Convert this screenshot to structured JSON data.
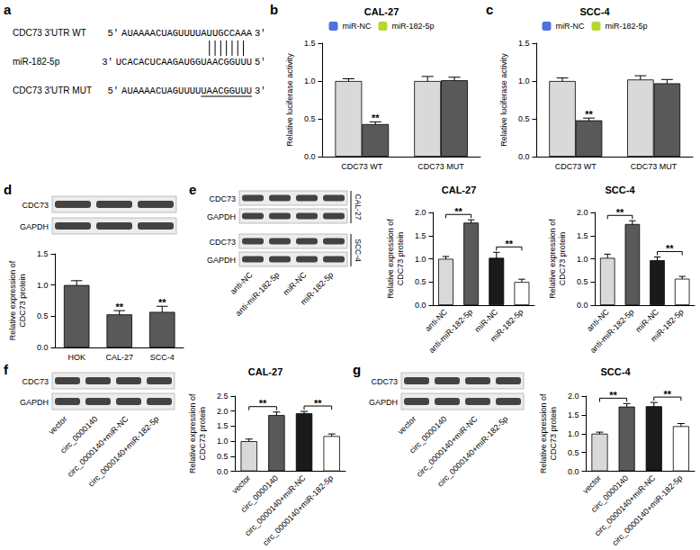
{
  "panel_a": {
    "panel": "a",
    "rows": [
      {
        "label": "CDC73 3'UTR WT",
        "prime5": "5'",
        "sequence": "AUAAAACUAGUUUUAUUGCCAAA",
        "prime3": "3'"
      },
      {
        "label": "miR-182-5p",
        "prime5": "3'",
        "sequence": "UCACACUCAAGAUGGUAACGGUUU",
        "prime3": "5'"
      },
      {
        "label": "CDC73 3'UTR MUT",
        "prime5": "5'",
        "sequence": "AUAAAACUAGUUUUUAACGGUUU",
        "prime3": "3'"
      }
    ]
  },
  "blots": [
    {
      "panel": "d",
      "rows": [
        "CDC73",
        "GAPDH"
      ]
    },
    {
      "panel": "e",
      "groups": [
        {
          "name": "CAL-27",
          "rows": [
            "CDC73",
            "GAPDH"
          ]
        },
        {
          "name": "SCC-4",
          "rows": [
            "CDC73",
            "GAPDH"
          ]
        }
      ],
      "lanes": [
        "anti-NC",
        "anti-miR-182-5p",
        "miR-NC",
        "miR-182-5p"
      ]
    },
    {
      "panel": "f",
      "rows": [
        "CDC73",
        "GAPDH"
      ],
      "lanes": [
        "vector",
        "circ_0000140",
        "circ_0000140+miR-NC",
        "circ_0000140+miR-182-5p"
      ]
    },
    {
      "panel": "g",
      "rows": [
        "CDC73",
        "GAPDH"
      ],
      "lanes": [
        "vector",
        "circ_0000140",
        "circ_0000140+miR-NC",
        "circ_0000140+miR-182-5p"
      ]
    }
  ],
  "chart_data": [
    {
      "panel": "b",
      "type": "bar",
      "title": "CAL-27",
      "y_label": "Relative luciferase activity",
      "categories": [
        "CDC73 WT",
        "CDC73 MUT"
      ],
      "series": [
        {
          "name": "miR-NC",
          "color": "#d9d9d9",
          "values": [
            1.0,
            1.0
          ],
          "errors": [
            0.03,
            0.06
          ]
        },
        {
          "name": "miR-182-5p",
          "color": "#595959",
          "values": [
            0.43,
            1.01
          ],
          "errors": [
            0.03,
            0.04
          ]
        }
      ],
      "ylim": [
        0,
        1.5
      ],
      "yticks": [
        {
          "value": 0,
          "label": "0.0"
        },
        0.5,
        {
          "value": 1,
          "label": "1.0"
        },
        1.5
      ],
      "grid": false,
      "legend": "top",
      "annotations": [
        {
          "category": 0,
          "series": 1,
          "text": "**"
        }
      ]
    },
    {
      "panel": "c",
      "type": "bar",
      "title": "SCC-4",
      "y_label": "Relative luciferase activity",
      "categories": [
        "CDC73 WT",
        "CDC73 MUT"
      ],
      "series": [
        {
          "name": "miR-NC",
          "color": "#d9d9d9",
          "values": [
            1.0,
            1.02
          ],
          "errors": [
            0.04,
            0.05
          ]
        },
        {
          "name": "miR-182-5p",
          "color": "#595959",
          "values": [
            0.48,
            0.97
          ],
          "errors": [
            0.03,
            0.05
          ]
        }
      ],
      "ylim": [
        0,
        1.5
      ],
      "yticks": [
        {
          "value": 0,
          "label": "0.0"
        },
        0.5,
        {
          "value": 1,
          "label": "1.0"
        },
        1.5
      ],
      "grid": false,
      "legend": "top",
      "annotations": [
        {
          "category": 0,
          "series": 1,
          "text": "**"
        }
      ]
    },
    {
      "panel": "d",
      "type": "bar",
      "y_label": "Relative expression of\nCDC73 protein",
      "categories": [
        "HOK",
        "CAL-27",
        "SCC-4"
      ],
      "values": [
        1.0,
        0.53,
        0.57
      ],
      "errors": [
        0.07,
        0.06,
        0.09
      ],
      "color": "#595959",
      "ylim": [
        0,
        1.5
      ],
      "yticks": [
        {
          "value": 0,
          "label": "0.0"
        },
        0.5,
        {
          "value": 1,
          "label": "1.0"
        },
        1.5
      ],
      "grid": false,
      "annotations": [
        {
          "category": 1,
          "text": "**"
        },
        {
          "category": 2,
          "text": "**"
        }
      ]
    },
    {
      "panel": "e",
      "type": "bar",
      "title": "CAL-27",
      "y_label": "Relative expression of\nCDC73 protein",
      "categories": [
        "anti-NC",
        "anti-miR-182-5p",
        "miR-NC",
        "miR-182-5p"
      ],
      "values": [
        1.0,
        1.78,
        1.02,
        0.5
      ],
      "errors": [
        0.05,
        0.06,
        0.12,
        0.06
      ],
      "colors": [
        "#d9d9d9",
        "#595959",
        "#1a1a1a",
        "#ffffff"
      ],
      "ylim": [
        0,
        2
      ],
      "yticks": [
        {
          "value": 0,
          "label": "0.0"
        },
        0.5,
        {
          "value": 1,
          "label": "1.0"
        },
        1.5,
        {
          "value": 2,
          "label": "2.0"
        }
      ],
      "grid": false,
      "annotations": [
        {
          "from": 0,
          "to": 1,
          "text": "**"
        },
        {
          "from": 2,
          "to": 3,
          "text": "**"
        }
      ]
    },
    {
      "panel": "e",
      "type": "bar",
      "title": "SCC-4",
      "y_label": "Relative expression of\nCDC73 protein",
      "categories": [
        "anti-NC",
        "anti-miR-182-5p",
        "miR-NC",
        "miR-182-5p"
      ],
      "values": [
        1.02,
        1.75,
        0.97,
        0.57
      ],
      "errors": [
        0.08,
        0.07,
        0.07,
        0.05
      ],
      "colors": [
        "#d9d9d9",
        "#595959",
        "#1a1a1a",
        "#ffffff"
      ],
      "ylim": [
        0,
        2
      ],
      "yticks": [
        {
          "value": 0,
          "label": "0.0"
        },
        0.5,
        {
          "value": 1,
          "label": "1.0"
        },
        1.5,
        {
          "value": 2,
          "label": "2.0"
        }
      ],
      "grid": false,
      "annotations": [
        {
          "from": 0,
          "to": 1,
          "text": "**"
        },
        {
          "from": 2,
          "to": 3,
          "text": "**"
        }
      ]
    },
    {
      "panel": "f",
      "type": "bar",
      "title": "CAL-27",
      "y_label": "Relative expression of\nCDC73 protein",
      "categories": [
        "vector",
        "circ_0000140",
        "circ_0000140+miR-NC",
        "circ_0000140+miR-182-5p"
      ],
      "values": [
        1.0,
        1.87,
        1.93,
        1.17
      ],
      "errors": [
        0.07,
        0.1,
        0.06,
        0.07
      ],
      "colors": [
        "#d9d9d9",
        "#595959",
        "#1a1a1a",
        "#ffffff"
      ],
      "ylim": [
        0,
        2.5
      ],
      "yticks": [
        {
          "value": 0,
          "label": "0.0"
        },
        0.5,
        {
          "value": 1,
          "label": "1.0"
        },
        1.5,
        {
          "value": 2,
          "label": "2.0"
        },
        2.5
      ],
      "grid": false,
      "annotations": [
        {
          "from": 0,
          "to": 1,
          "text": "**"
        },
        {
          "from": 2,
          "to": 3,
          "text": "**"
        }
      ]
    },
    {
      "panel": "g",
      "type": "bar",
      "title": "SCC-4",
      "y_label": "Relative expression of\nCDC73 protein",
      "categories": [
        "vector",
        "circ_0000140",
        "circ_0000140+miR-NC",
        "circ_0000140+miR-182-5p"
      ],
      "values": [
        1.0,
        1.72,
        1.73,
        1.2
      ],
      "errors": [
        0.04,
        0.08,
        0.1,
        0.07
      ],
      "colors": [
        "#d9d9d9",
        "#595959",
        "#1a1a1a",
        "#ffffff"
      ],
      "ylim": [
        0,
        2
      ],
      "yticks": [
        {
          "value": 0,
          "label": "0.0"
        },
        0.5,
        {
          "value": 1,
          "label": "1.0"
        },
        1.5,
        {
          "value": 2,
          "label": "2.0"
        }
      ],
      "grid": false,
      "annotations": [
        {
          "from": 0,
          "to": 1,
          "text": "**"
        },
        {
          "from": 2,
          "to": 3,
          "text": "**"
        }
      ]
    }
  ]
}
